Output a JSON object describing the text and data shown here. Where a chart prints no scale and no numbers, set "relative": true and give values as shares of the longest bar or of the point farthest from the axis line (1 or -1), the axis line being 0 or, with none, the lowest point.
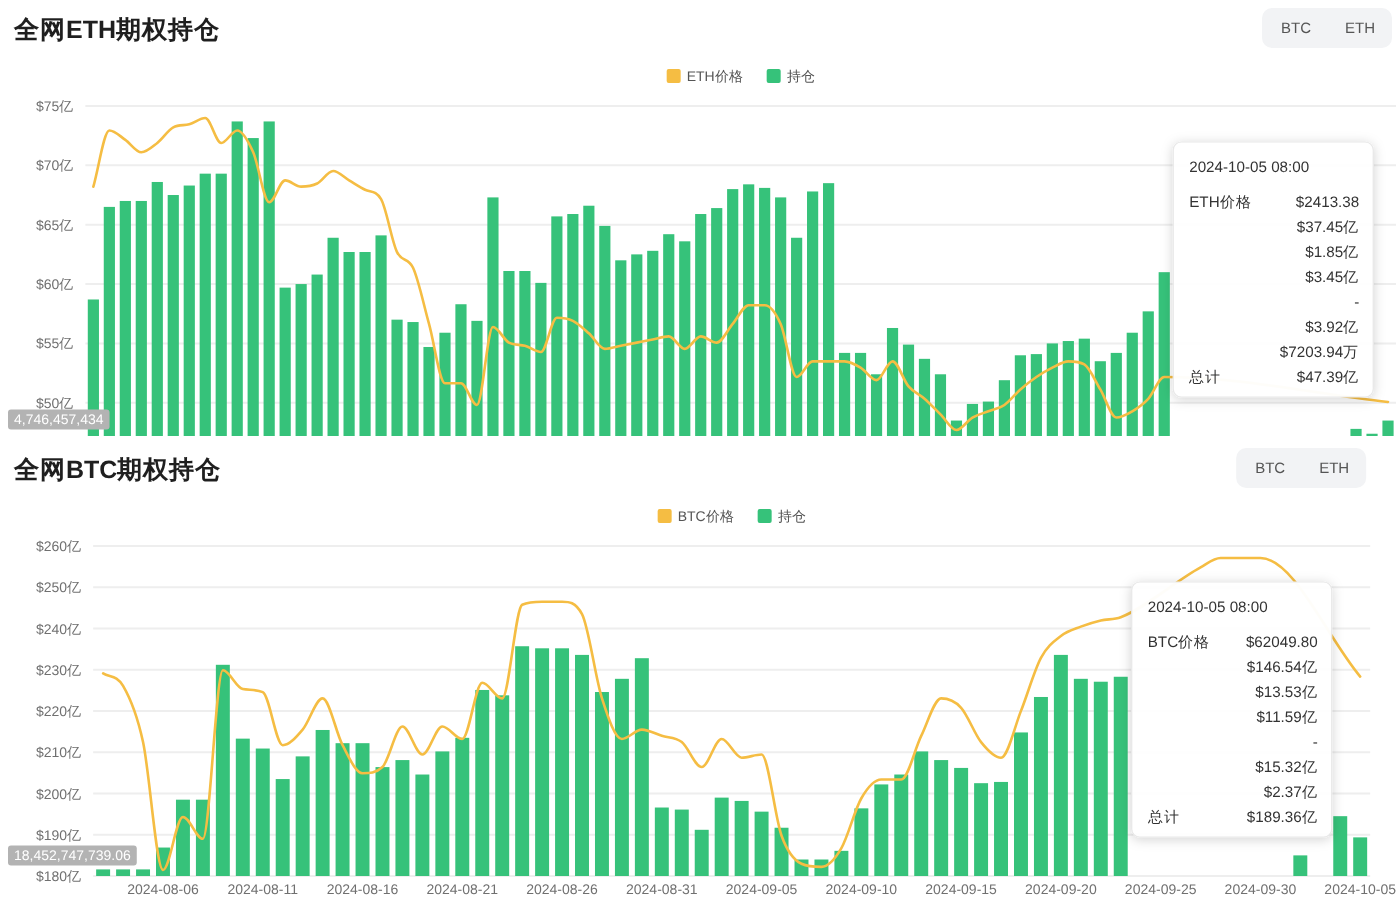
{
  "chart_data": [
    {
      "type": "line",
      "title": "全网ETH期权持仓",
      "relative": true,
      "categories": [
        null,
        null,
        null,
        null,
        null,
        null,
        null,
        null,
        null,
        null,
        null,
        null,
        null,
        null,
        null,
        null,
        null,
        null,
        null,
        null,
        null,
        null,
        null,
        null,
        null,
        null,
        null,
        null,
        null,
        null,
        null,
        null,
        null,
        null,
        null,
        null,
        null,
        null,
        null,
        null,
        null,
        null,
        null,
        null,
        null,
        null,
        null,
        null,
        null,
        null,
        null,
        null,
        null,
        null,
        null,
        null,
        null,
        null,
        null,
        null,
        null,
        null,
        null,
        null,
        null,
        null,
        null,
        null,
        null,
        null,
        null,
        null,
        null,
        null,
        null,
        null,
        null,
        null,
        null,
        null,
        null,
        null
      ],
      "series": [
        {
          "name": "ETH价格",
          "color": "#f5bd43",
          "values": [
            0.78,
            0.96,
            0.93,
            0.89,
            0.92,
            0.97,
            0.98,
            1.0,
            0.92,
            0.96,
            0.89,
            0.73,
            0.8,
            0.78,
            0.79,
            0.83,
            0.8,
            0.77,
            0.74,
            0.57,
            0.52,
            0.34,
            0.15,
            0.15,
            0.08,
            0.33,
            0.28,
            0.27,
            0.25,
            0.36,
            0.35,
            0.31,
            0.26,
            0.27,
            0.28,
            0.29,
            0.3,
            0.26,
            0.3,
            0.28,
            0.34,
            0.4,
            0.4,
            0.34,
            0.17,
            0.22,
            0.22,
            0.22,
            0.2,
            0.16,
            0.22,
            0.14,
            0.1,
            0.05,
            0,
            0.04,
            0.06,
            0.08,
            0.13,
            0.17,
            0.2,
            0.22,
            0.21,
            0.13,
            0.04,
            0.06,
            0.1,
            0.17,
            null,
            null,
            null,
            null,
            null,
            null,
            null,
            null,
            null,
            null,
            null,
            null,
            null,
            0.09
          ]
        }
      ],
      "legend": "top",
      "tick_labels": false,
      "annotations": [
        "BTC",
        "ETH",
        "4,746,457,434",
        "2024-10-05 08:00",
        "ETH价格 $2413.38",
        "$37.45亿",
        "$1.85亿",
        "$3.45亿",
        "-",
        "$3.92亿",
        "$7203.94万",
        "总计 $47.39亿"
      ]
    },
    {
      "type": "bar",
      "categories": [
        null,
        null,
        null,
        null,
        null,
        null,
        null,
        null,
        null,
        null,
        null,
        null,
        null,
        null,
        null,
        null,
        null,
        null,
        null,
        null,
        null,
        null,
        null,
        null,
        null,
        null,
        null,
        null,
        null,
        null,
        null,
        null,
        null,
        null,
        null,
        null,
        null,
        null,
        null,
        null,
        null,
        null,
        null,
        null,
        null,
        null,
        null,
        null,
        null,
        null,
        null,
        null,
        null,
        null,
        null,
        null,
        null,
        null,
        null,
        null,
        null,
        null,
        null,
        null,
        null,
        null,
        null,
        null,
        null,
        null,
        null,
        null,
        null,
        null,
        null,
        null,
        null,
        null,
        null,
        null,
        null,
        null
      ],
      "series": [
        {
          "name": "持仓",
          "color": "#36c27a",
          "values": [
            58.7,
            66.5,
            67.0,
            67.0,
            68.6,
            67.5,
            68.3,
            69.3,
            69.3,
            73.7,
            72.3,
            73.7,
            59.7,
            60.0,
            60.8,
            63.9,
            62.7,
            62.7,
            64.1,
            57.0,
            56.8,
            54.7,
            55.9,
            58.3,
            56.9,
            67.3,
            61.1,
            61.1,
            60.1,
            65.7,
            65.9,
            66.6,
            64.9,
            62.0,
            62.5,
            62.8,
            64.2,
            63.6,
            65.9,
            66.4,
            68.0,
            68.4,
            68.1,
            67.3,
            63.9,
            67.8,
            68.5,
            54.2,
            54.2,
            52.4,
            56.3,
            54.9,
            53.7,
            52.4,
            48.5,
            49.9,
            50.1,
            51.9,
            54.0,
            54.1,
            55.0,
            55.2,
            55.4,
            53.5,
            54.2,
            55.9,
            57.7,
            61.0,
            null,
            null,
            null,
            null,
            null,
            null,
            null,
            null,
            null,
            null,
            null,
            47.8,
            47.39,
            48.5
          ]
        }
      ],
      "ylim": [
        47.2,
        75
      ],
      "yticks": [
        {
          "value": 50,
          "label": "$50亿"
        },
        {
          "value": 55,
          "label": "$55亿"
        },
        {
          "value": 60,
          "label": "$60亿"
        },
        {
          "value": 65,
          "label": "$65亿"
        },
        {
          "value": 70,
          "label": "$70亿"
        },
        {
          "value": 75,
          "label": "$75亿"
        }
      ],
      "grid": "y",
      "legend": "top",
      "tick_labels": "y"
    },
    {
      "type": "line",
      "title": "全网BTC期权持仓",
      "relative": true,
      "categories": [
        null,
        null,
        null,
        null,
        null,
        null,
        null,
        null,
        null,
        null,
        null,
        null,
        null,
        null,
        null,
        null,
        null,
        null,
        null,
        null,
        null,
        null,
        null,
        null,
        null,
        null,
        null,
        null,
        null,
        null,
        null,
        null,
        null,
        null,
        null,
        null,
        null,
        null,
        null,
        null,
        null,
        null,
        null,
        null,
        null,
        null,
        null,
        null,
        null,
        null,
        null,
        null,
        null,
        null,
        null,
        null,
        null,
        null,
        null,
        null,
        null,
        null,
        null,
        null
      ],
      "series": [
        {
          "name": "BTC价格",
          "color": "#f5bd43",
          "values": [
            0.63,
            0.59,
            0.41,
            0,
            0.17,
            0.1,
            0.64,
            0.58,
            0.57,
            0.4,
            0.45,
            0.55,
            0.4,
            0.31,
            0.33,
            0.46,
            0.37,
            0.46,
            0.42,
            0.6,
            0.55,
            0.85,
            0.86,
            0.86,
            0.82,
            0.55,
            0.42,
            0.45,
            0.43,
            0.41,
            0.33,
            0.42,
            0.36,
            0.37,
            0.11,
            0.02,
            0.01,
            0.07,
            0.23,
            0.29,
            0.29,
            0.43,
            0.55,
            0.52,
            0.41,
            0.36,
            0.51,
            0.68,
            0.75,
            0.78,
            0.8,
            0.81,
            null,
            null,
            null,
            0.97,
            1.0,
            1.0,
            1.0,
            null,
            null,
            null,
            null,
            0.62
          ]
        }
      ],
      "legend": "top",
      "tick_labels": false,
      "annotations": [
        "BTC",
        "ETH",
        "18,452,747,739.06",
        "2024-10-05 08:00",
        "BTC价格 $62049.80",
        "$146.54亿",
        "$13.53亿",
        "$11.59亿",
        "-",
        "$15.32亿",
        "$2.37亿",
        "总计 $189.36亿"
      ]
    },
    {
      "type": "bar",
      "categories": [
        null,
        null,
        null,
        "2024-08-06",
        null,
        null,
        null,
        null,
        "2024-08-11",
        null,
        null,
        null,
        null,
        "2024-08-16",
        null,
        null,
        null,
        null,
        "2024-08-21",
        null,
        null,
        null,
        null,
        "2024-08-26",
        null,
        null,
        null,
        null,
        "2024-08-31",
        null,
        null,
        null,
        null,
        "2024-09-05",
        null,
        null,
        null,
        null,
        "2024-09-10",
        null,
        null,
        null,
        null,
        "2024-09-15",
        null,
        null,
        null,
        null,
        "2024-09-20",
        null,
        null,
        null,
        null,
        "2024-09-25",
        null,
        null,
        null,
        null,
        "2024-09-30",
        null,
        null,
        null,
        null,
        "2024-10-05"
      ],
      "series": [
        {
          "name": "持仓",
          "color": "#36c27a",
          "values": [
            181.6,
            181.6,
            181.6,
            186.9,
            198.5,
            198.5,
            231.2,
            213.3,
            210.9,
            203.5,
            209.0,
            215.4,
            212.2,
            212.2,
            206.4,
            208.1,
            204.6,
            210.2,
            213.5,
            225.1,
            223.8,
            235.7,
            235.2,
            235.2,
            233.6,
            224.6,
            227.8,
            232.8,
            196.6,
            196.1,
            191.2,
            199.0,
            198.2,
            195.6,
            191.7,
            184.0,
            184.0,
            186.1,
            196.4,
            202.2,
            204.6,
            210.2,
            208.1,
            206.2,
            202.5,
            202.8,
            214.8,
            223.4,
            233.6,
            227.8,
            227.1,
            228.3,
            null,
            null,
            null,
            null,
            null,
            null,
            null,
            null,
            185.0,
            null,
            194.5,
            189.36
          ]
        }
      ],
      "ylim": [
        180,
        260
      ],
      "yticks": [
        {
          "value": 180,
          "label": "$180亿"
        },
        {
          "value": 190,
          "label": "$190亿"
        },
        {
          "value": 200,
          "label": "$200亿"
        },
        {
          "value": 210,
          "label": "$210亿"
        },
        {
          "value": 220,
          "label": "$220亿"
        },
        {
          "value": 230,
          "label": "$230亿"
        },
        {
          "value": 240,
          "label": "$240亿"
        },
        {
          "value": 250,
          "label": "$250亿"
        },
        {
          "value": 260,
          "label": "$260亿"
        }
      ],
      "grid": "y",
      "legend": "top"
    }
  ]
}
